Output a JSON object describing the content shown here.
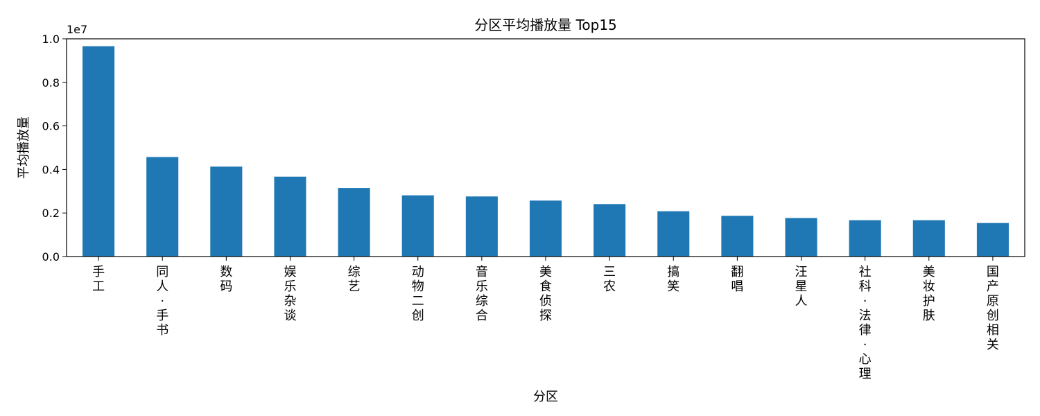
{
  "chart_data": {
    "type": "bar",
    "title": "分区平均播放量 Top15",
    "xlabel": "分区",
    "ylabel": "平均播放量",
    "offset_label": "1e7",
    "ylim": [
      0,
      1.0
    ],
    "yticks": [
      "0.0",
      "0.2",
      "0.4",
      "0.6",
      "0.8",
      "1.0"
    ],
    "bar_color": "#1f77b4",
    "grid": false,
    "categories": [
      "手工",
      "同人·手书",
      "数码",
      "娱乐杂谈",
      "综艺",
      "动物二创",
      "音乐综合",
      "美食侦探",
      "三农",
      "搞笑",
      "翻唱",
      "汪星人",
      "社科·法律·心理",
      "美妆护肤",
      "国产原创相关"
    ],
    "series": [
      {
        "values": [
          0.966,
          0.457,
          0.413,
          0.367,
          0.315,
          0.281,
          0.276,
          0.257,
          0.241,
          0.208,
          0.187,
          0.177,
          0.167,
          0.167,
          0.154
        ]
      }
    ]
  }
}
